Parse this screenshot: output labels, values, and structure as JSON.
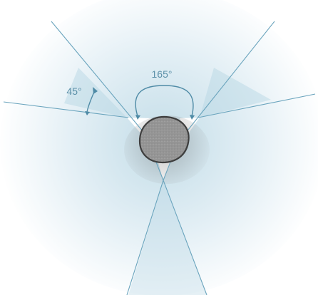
{
  "diagram": {
    "angle_labels": {
      "obtuse": "165°",
      "acute": "45°"
    },
    "colors": {
      "line": "#6aa4bd",
      "glow_inner": "#c3dde8",
      "wedge_fill": "#b4d5e3",
      "stone_fill": "#a6a6a6",
      "stone_outline": "#3e3e3e",
      "label_text": "#5b90a8"
    }
  }
}
